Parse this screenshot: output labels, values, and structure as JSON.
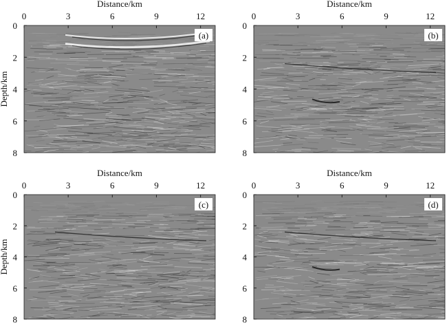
{
  "panels": [
    {
      "label": "(a)",
      "xlabel": "Distance/km",
      "ylabel": "Depth/km"
    },
    {
      "label": "(b)",
      "xlabel": "Distance/km",
      "ylabel": ""
    },
    {
      "label": "(c)",
      "xlabel": "Distance/km",
      "ylabel": "Depth/km"
    },
    {
      "label": "(d)",
      "xlabel": "Distance/km",
      "ylabel": ""
    }
  ],
  "xticks": [
    "0",
    "3",
    "6",
    "9",
    "12"
  ],
  "yticks": [
    "0",
    "2",
    "4",
    "6",
    "8"
  ],
  "xlim": [
    0,
    13
  ],
  "ylim": [
    0,
    8
  ],
  "colormap": "gray"
}
